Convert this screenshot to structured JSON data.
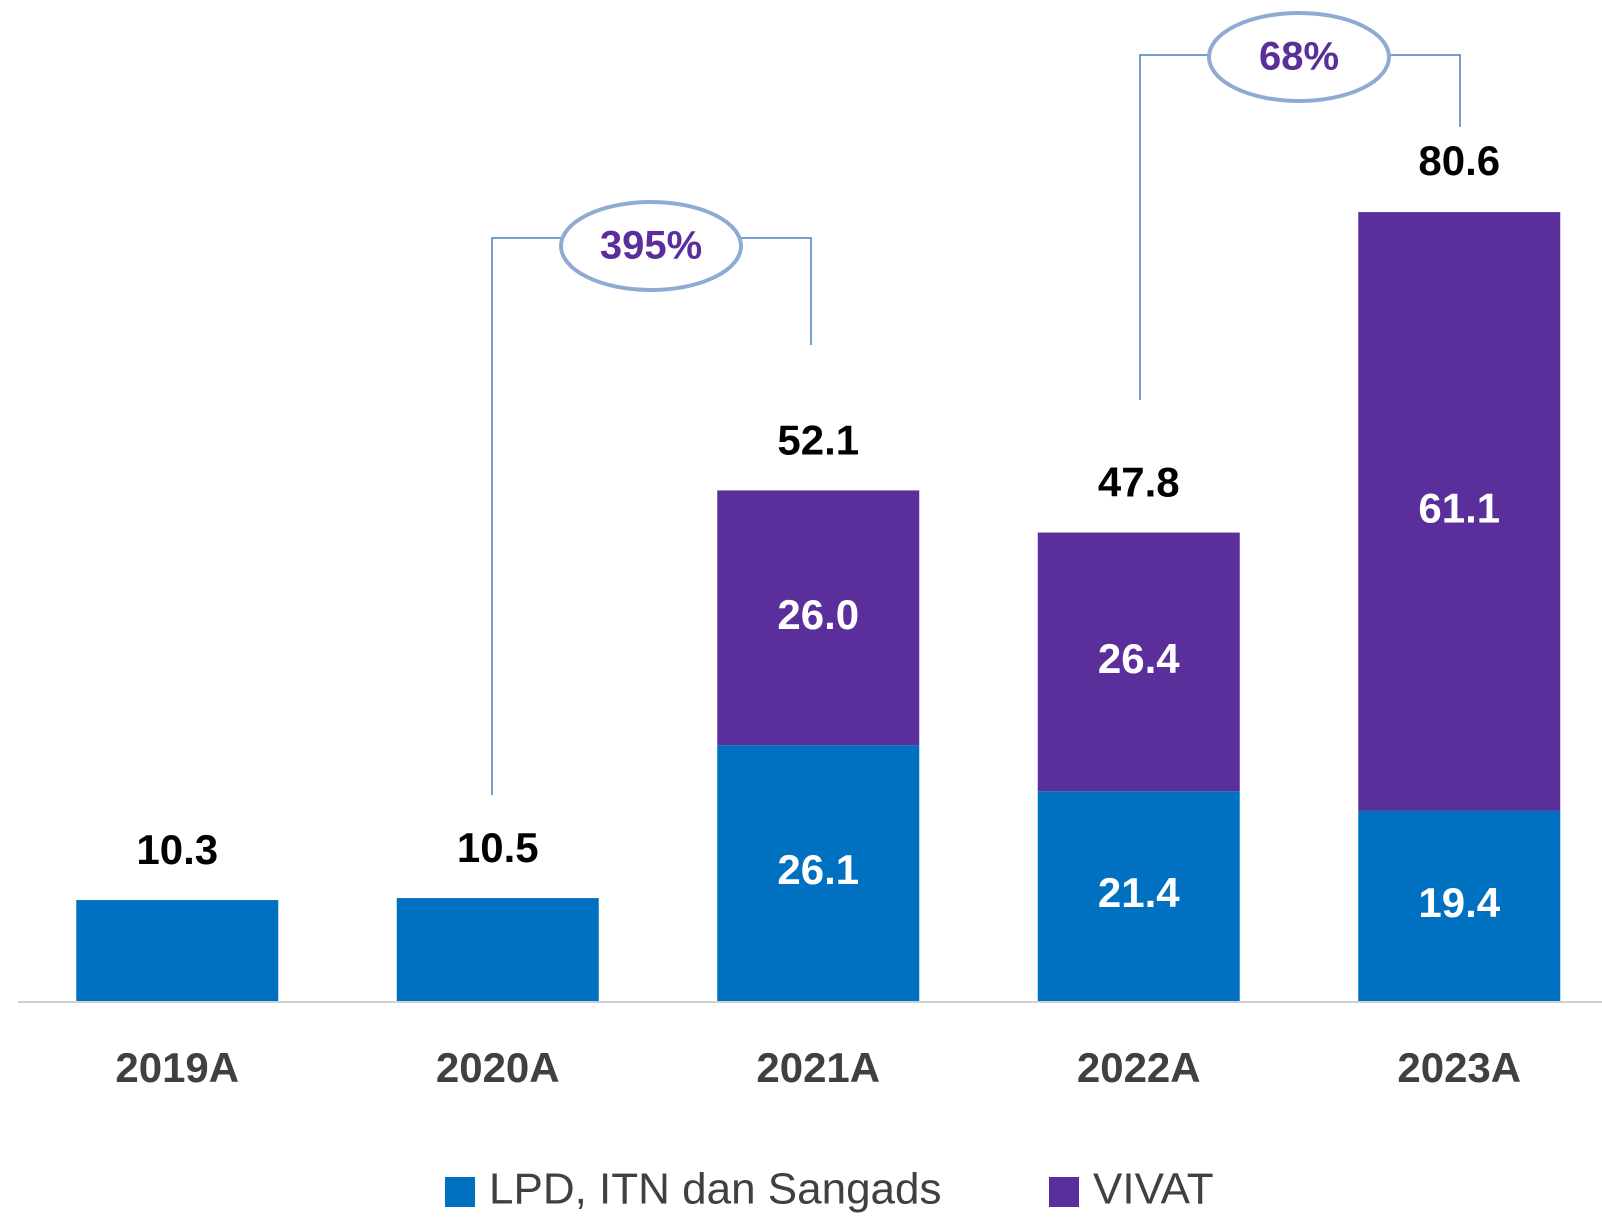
{
  "chart_data": {
    "type": "stacked_bar",
    "categories": [
      "2019A",
      "2020A",
      "2021A",
      "2022A",
      "2023A"
    ],
    "series": [
      {
        "name": "LPD, ITN dan Sangads",
        "color": "#0070c0",
        "values": [
          10.3,
          10.5,
          26.1,
          21.4,
          19.4
        ],
        "value_labels": [
          null,
          null,
          "26.1",
          "21.4",
          "19.4"
        ]
      },
      {
        "name": "VIVAT",
        "color": "#5b2f9b",
        "values": [
          null,
          null,
          26.0,
          26.4,
          61.1
        ],
        "value_labels": [
          null,
          null,
          "26.0",
          "26.4",
          "61.1"
        ]
      }
    ],
    "totals": [
      10.3,
      10.5,
      52.1,
      47.8,
      80.6
    ],
    "annotations": [
      {
        "text": "395%"
      },
      {
        "text": "68%"
      }
    ],
    "ylim": [
      0,
      100
    ]
  }
}
